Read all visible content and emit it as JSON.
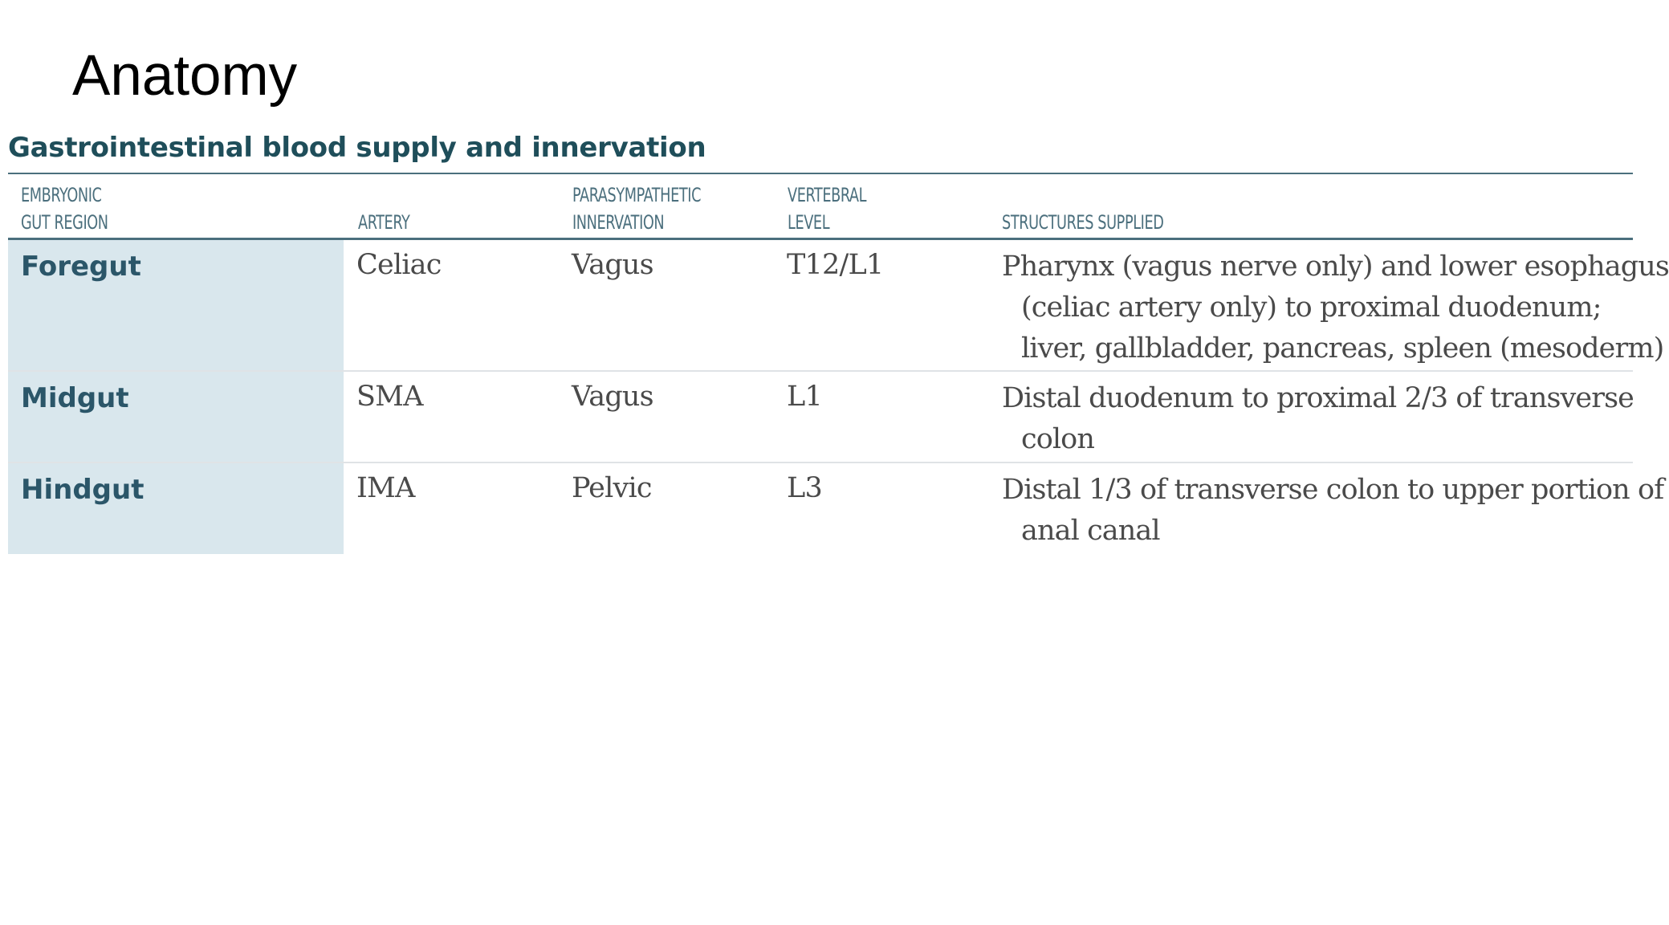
{
  "slide": {
    "title": "Anatomy"
  },
  "table": {
    "title": "Gastrointestinal blood supply and innervation",
    "headers": {
      "region_line1": "EMBRYONIC",
      "region_line2": "GUT REGION",
      "artery": "ARTERY",
      "parasympathetic_line1": "PARASYMPATHETIC",
      "parasympathetic_line2": "INNERVATION",
      "vertebral_line1": "VERTEBRAL",
      "vertebral_line2": "LEVEL",
      "structures": "STRUCTURES SUPPLIED"
    },
    "rows": [
      {
        "region": "Foregut",
        "artery": "Celiac",
        "innervation": "Vagus",
        "vertebral_level": "T12/L1",
        "structures_lines": [
          "Pharynx (vagus nerve only) and lower esophagus",
          "(celiac artery only) to proximal duodenum;",
          "liver, gallbladder, pancreas, spleen (mesoderm)"
        ]
      },
      {
        "region": "Midgut",
        "artery": "SMA",
        "innervation": "Vagus",
        "vertebral_level": "L1",
        "structures_lines": [
          "Distal duodenum to proximal 2/3 of transverse",
          "colon"
        ]
      },
      {
        "region": "Hindgut",
        "artery": "IMA",
        "innervation": "Pelvic",
        "vertebral_level": "L3",
        "structures_lines": [
          "Distal 1/3 of transverse colon to upper portion of",
          "anal canal"
        ]
      }
    ]
  },
  "colors": {
    "title_teal": "#1f4e5a",
    "header_teal": "#4b6f7d",
    "region_fill": "#d9e7ed",
    "region_text": "#2b5669",
    "body_text": "#4a4a4a"
  }
}
